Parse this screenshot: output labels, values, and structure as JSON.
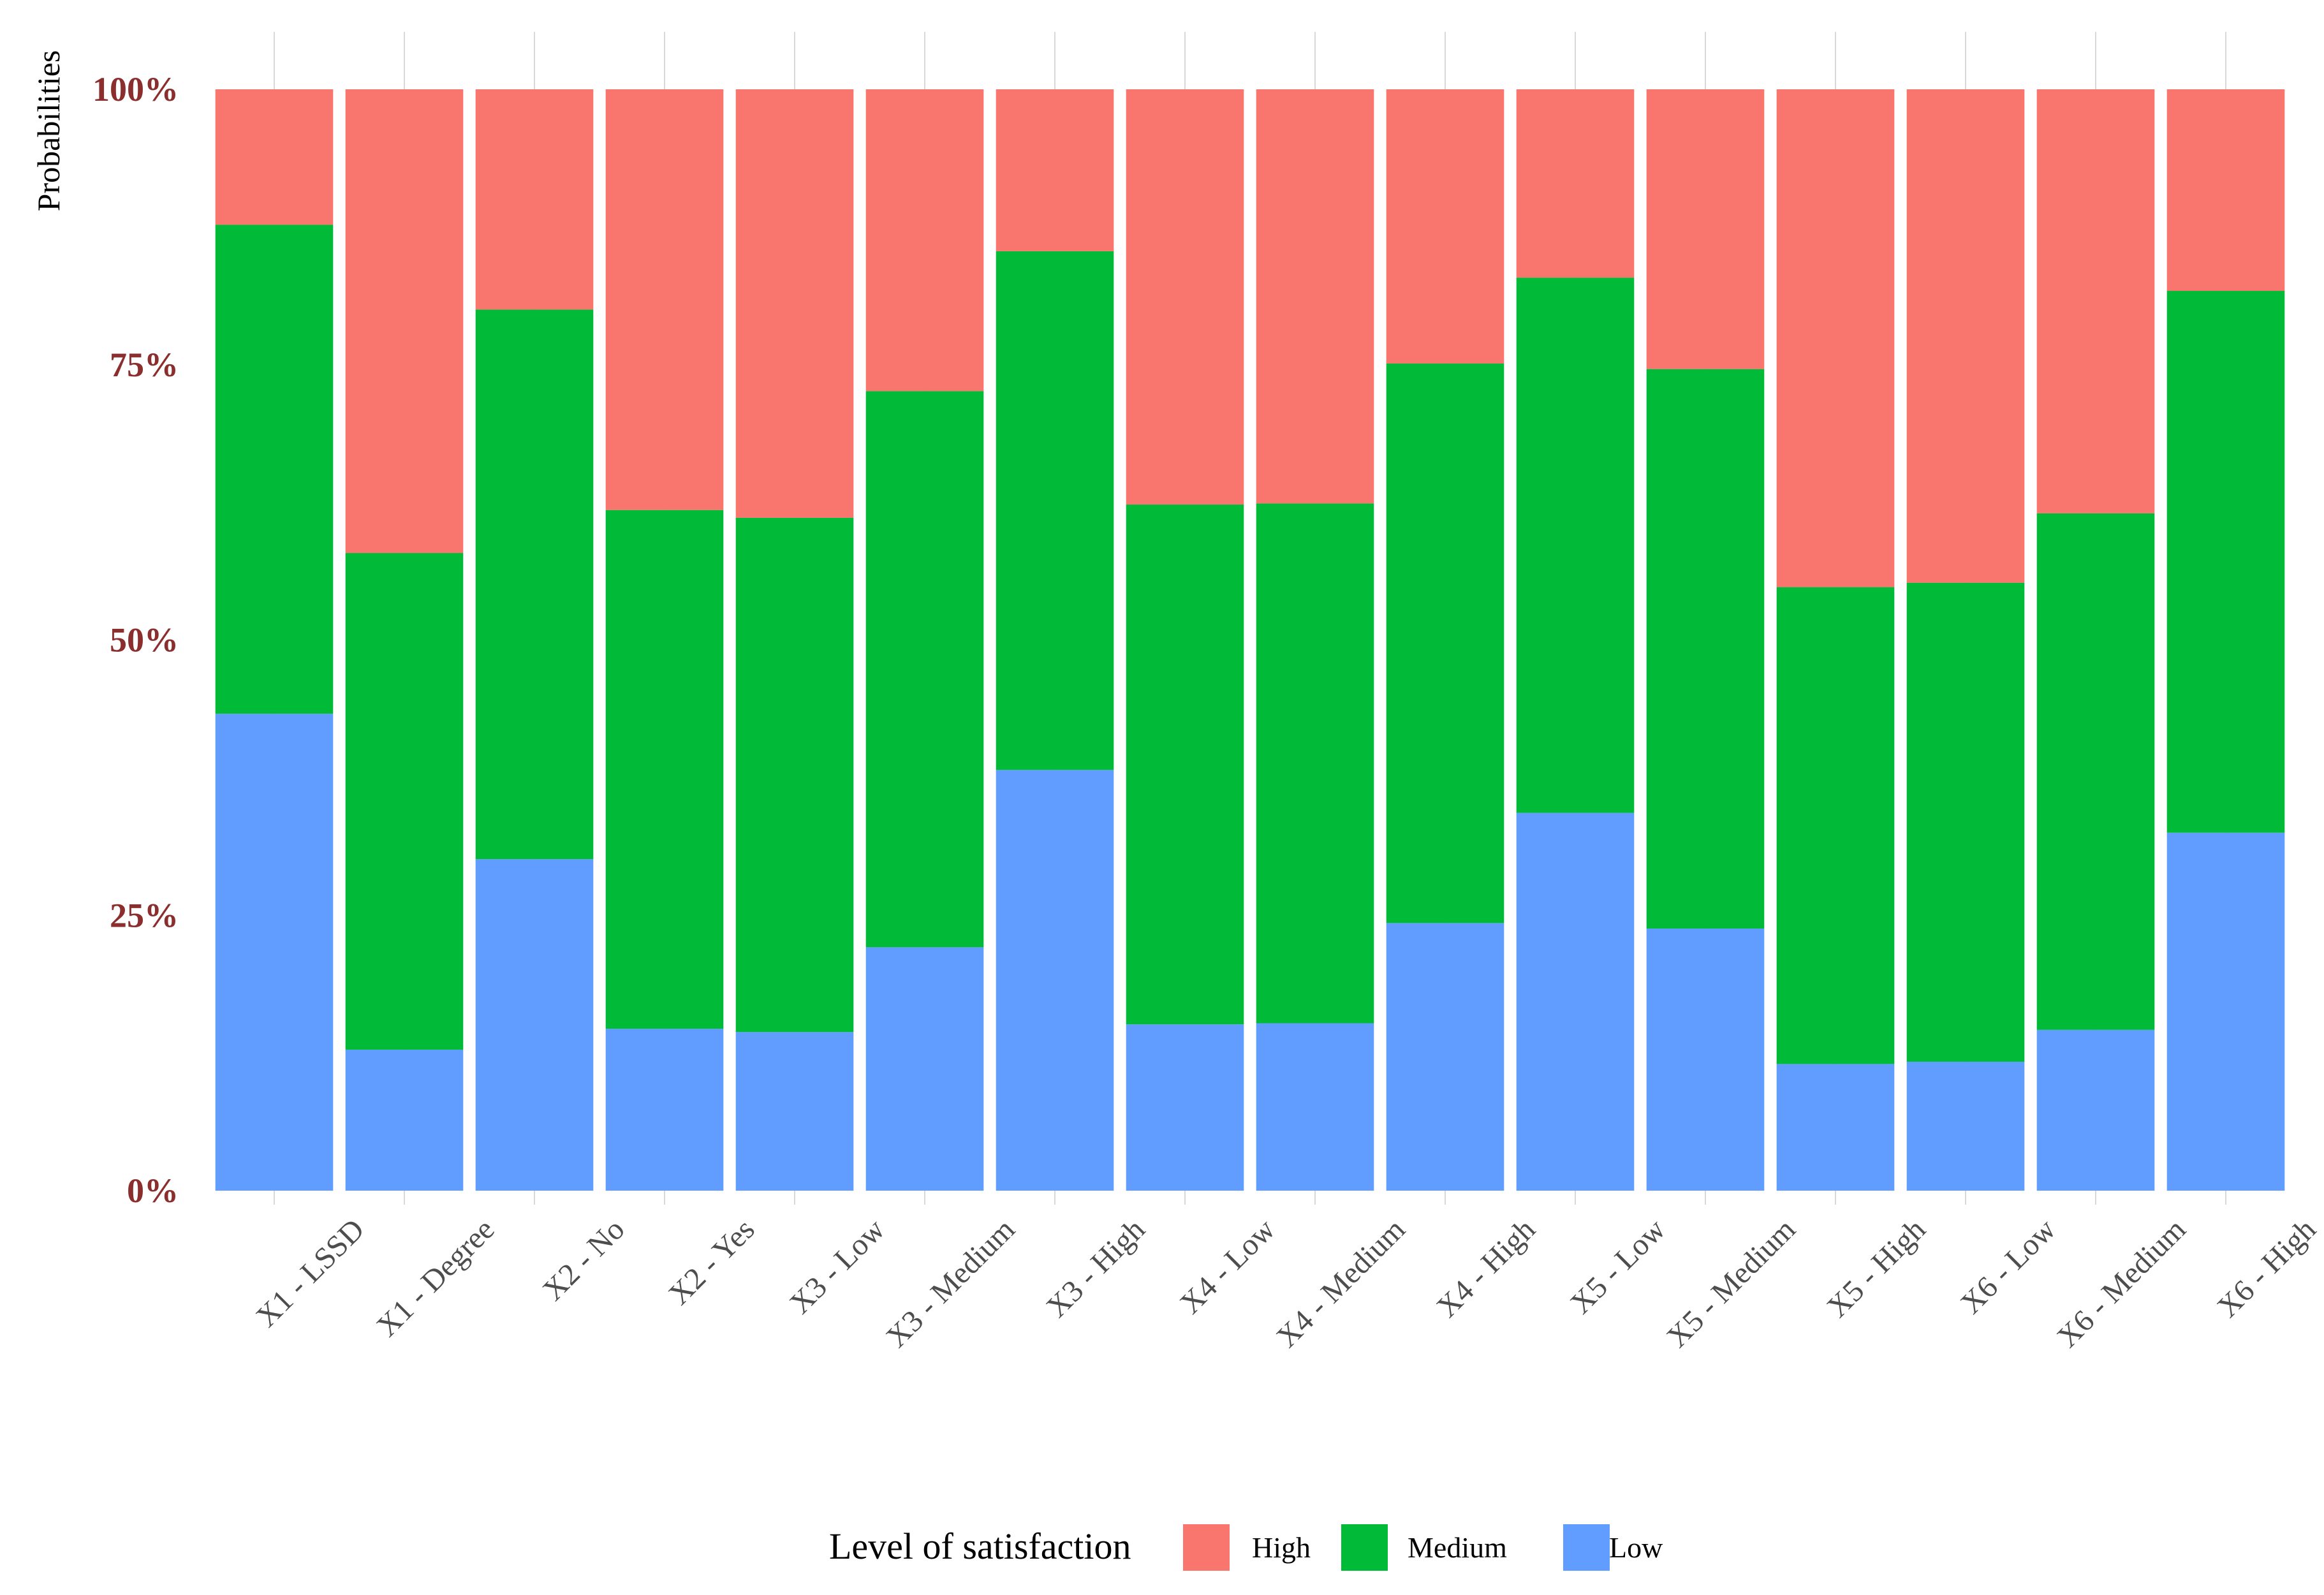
{
  "colors": {
    "high": "#F8766D",
    "medium": "#00BA38",
    "low": "#619CFF",
    "y_tick": "#8B2E2E",
    "x_tick": "#4D4D4D",
    "text": "#000000",
    "grid": "#D9D9D9"
  },
  "chart_data": {
    "type": "bar",
    "stacked": true,
    "percent": true,
    "title": "",
    "xlabel": "",
    "ylabel": "Probabilities",
    "ylim": [
      0,
      1
    ],
    "y_ticks": [
      {
        "value": 0,
        "label": "0%"
      },
      {
        "value": 0.25,
        "label": "25%"
      },
      {
        "value": 0.5,
        "label": "50%"
      },
      {
        "value": 0.75,
        "label": "75%"
      },
      {
        "value": 1,
        "label": "100%"
      }
    ],
    "categories": [
      "X1 - LSSD",
      "X1 - Degree",
      "X2 - No",
      "X2 - Yes",
      "X3 - Low",
      "X3 - Medium",
      "X3 - High",
      "X4 - Low",
      "X4 - Medium",
      "X4 - High",
      "X5 - Low",
      "X5 - Medium",
      "X5 - High",
      "X6 - Low",
      "X6 - Medium",
      "X6 - High"
    ],
    "series": [
      {
        "name": "Low",
        "key": "low",
        "values": [
          0.433,
          0.128,
          0.301,
          0.147,
          0.144,
          0.221,
          0.382,
          0.151,
          0.152,
          0.243,
          0.343,
          0.238,
          0.115,
          0.117,
          0.146,
          0.325
        ]
      },
      {
        "name": "Medium",
        "key": "medium",
        "values": [
          0.444,
          0.451,
          0.499,
          0.471,
          0.467,
          0.505,
          0.471,
          0.472,
          0.472,
          0.508,
          0.486,
          0.508,
          0.433,
          0.435,
          0.469,
          0.492
        ]
      },
      {
        "name": "High",
        "key": "high",
        "values": [
          0.123,
          0.421,
          0.2,
          0.382,
          0.389,
          0.274,
          0.147,
          0.377,
          0.376,
          0.249,
          0.171,
          0.254,
          0.452,
          0.448,
          0.385,
          0.183
        ]
      }
    ],
    "legend": {
      "title": "Level of satisfaction",
      "position": "bottom",
      "entries": [
        {
          "label": "High",
          "key": "high"
        },
        {
          "label": "Medium",
          "key": "medium"
        },
        {
          "label": "Low",
          "key": "low"
        }
      ]
    },
    "grid": true
  }
}
